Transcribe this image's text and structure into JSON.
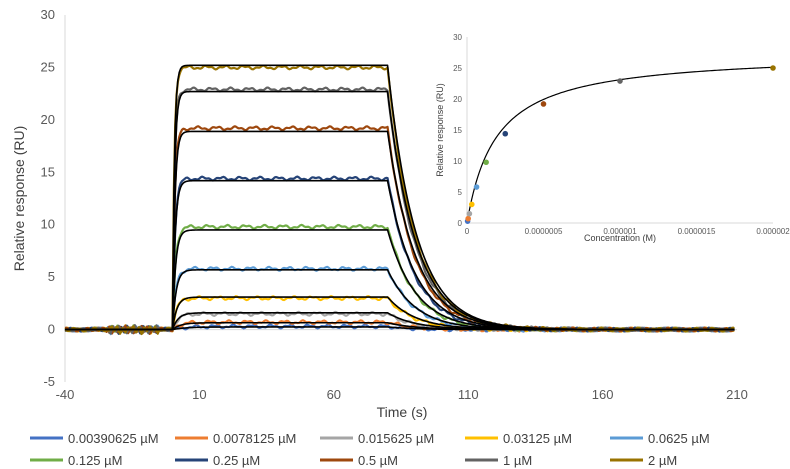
{
  "chart_data": [
    {
      "type": "line",
      "title": "",
      "xlabel": "Time (s)",
      "ylabel": "Relative response (RU)",
      "xlim": [
        -40,
        210
      ],
      "ylim": [
        -5,
        30
      ],
      "xticks": [
        -40,
        10,
        60,
        110,
        160,
        210
      ],
      "yticks": [
        -5,
        0,
        5,
        10,
        15,
        20,
        25,
        30
      ],
      "grid": false,
      "legend_position": "bottom",
      "association_start": 0,
      "dissociation_start": 80,
      "series": [
        {
          "name": "0.00390625 µM",
          "color": "#4472C4",
          "plateau": 0.3
        },
        {
          "name": "0.0078125 µM",
          "color": "#ED7D31",
          "plateau": 0.7
        },
        {
          "name": "0.015625 µM",
          "color": "#A5A5A5",
          "plateau": 1.5
        },
        {
          "name": "0.03125 µM",
          "color": "#FFC000",
          "plateau": 3.0
        },
        {
          "name": "0.0625 µM",
          "color": "#5B9BD5",
          "plateau": 5.8
        },
        {
          "name": "0.125 µM",
          "color": "#70AD47",
          "plateau": 9.8
        },
        {
          "name": "0.25 µM",
          "color": "#264478",
          "plateau": 14.4
        },
        {
          "name": "0.5 µM",
          "color": "#9E480E",
          "plateau": 19.2
        },
        {
          "name": "1 µM",
          "color": "#636363",
          "plateau": 22.9
        },
        {
          "name": "2 µM",
          "color": "#997300",
          "plateau": 25.0
        }
      ],
      "fit_plateaus": [
        0.25,
        0.65,
        1.6,
        3.1,
        5.7,
        9.5,
        14.2,
        18.9,
        22.7,
        25.2
      ]
    },
    {
      "type": "scatter",
      "xlabel": "Concentration (M)",
      "ylabel": "Relative response (RU)",
      "xlim": [
        0,
        2e-06
      ],
      "ylim": [
        0,
        30
      ],
      "xtick_labels": [
        "0",
        "0.0000005",
        "0.000001",
        "0.0000015",
        "0.000002"
      ],
      "ytick_labels": [
        "0",
        "5",
        "10",
        "15",
        "20",
        "25",
        "30"
      ],
      "fit": {
        "Rmax": 27.5,
        "KD": 1.9e-07
      },
      "points": [
        {
          "x": 3.90625e-09,
          "y": 0.3,
          "color": "#4472C4"
        },
        {
          "x": 7.8125e-09,
          "y": 0.7,
          "color": "#ED7D31"
        },
        {
          "x": 1.5625e-08,
          "y": 1.5,
          "color": "#A5A5A5"
        },
        {
          "x": 3.125e-08,
          "y": 3.0,
          "color": "#FFC000"
        },
        {
          "x": 6.25e-08,
          "y": 5.8,
          "color": "#5B9BD5"
        },
        {
          "x": 1.25e-07,
          "y": 9.8,
          "color": "#70AD47"
        },
        {
          "x": 2.5e-07,
          "y": 14.4,
          "color": "#264478"
        },
        {
          "x": 5e-07,
          "y": 19.2,
          "color": "#9E480E"
        },
        {
          "x": 1e-06,
          "y": 22.9,
          "color": "#636363"
        },
        {
          "x": 2e-06,
          "y": 25.0,
          "color": "#997300"
        }
      ]
    }
  ]
}
